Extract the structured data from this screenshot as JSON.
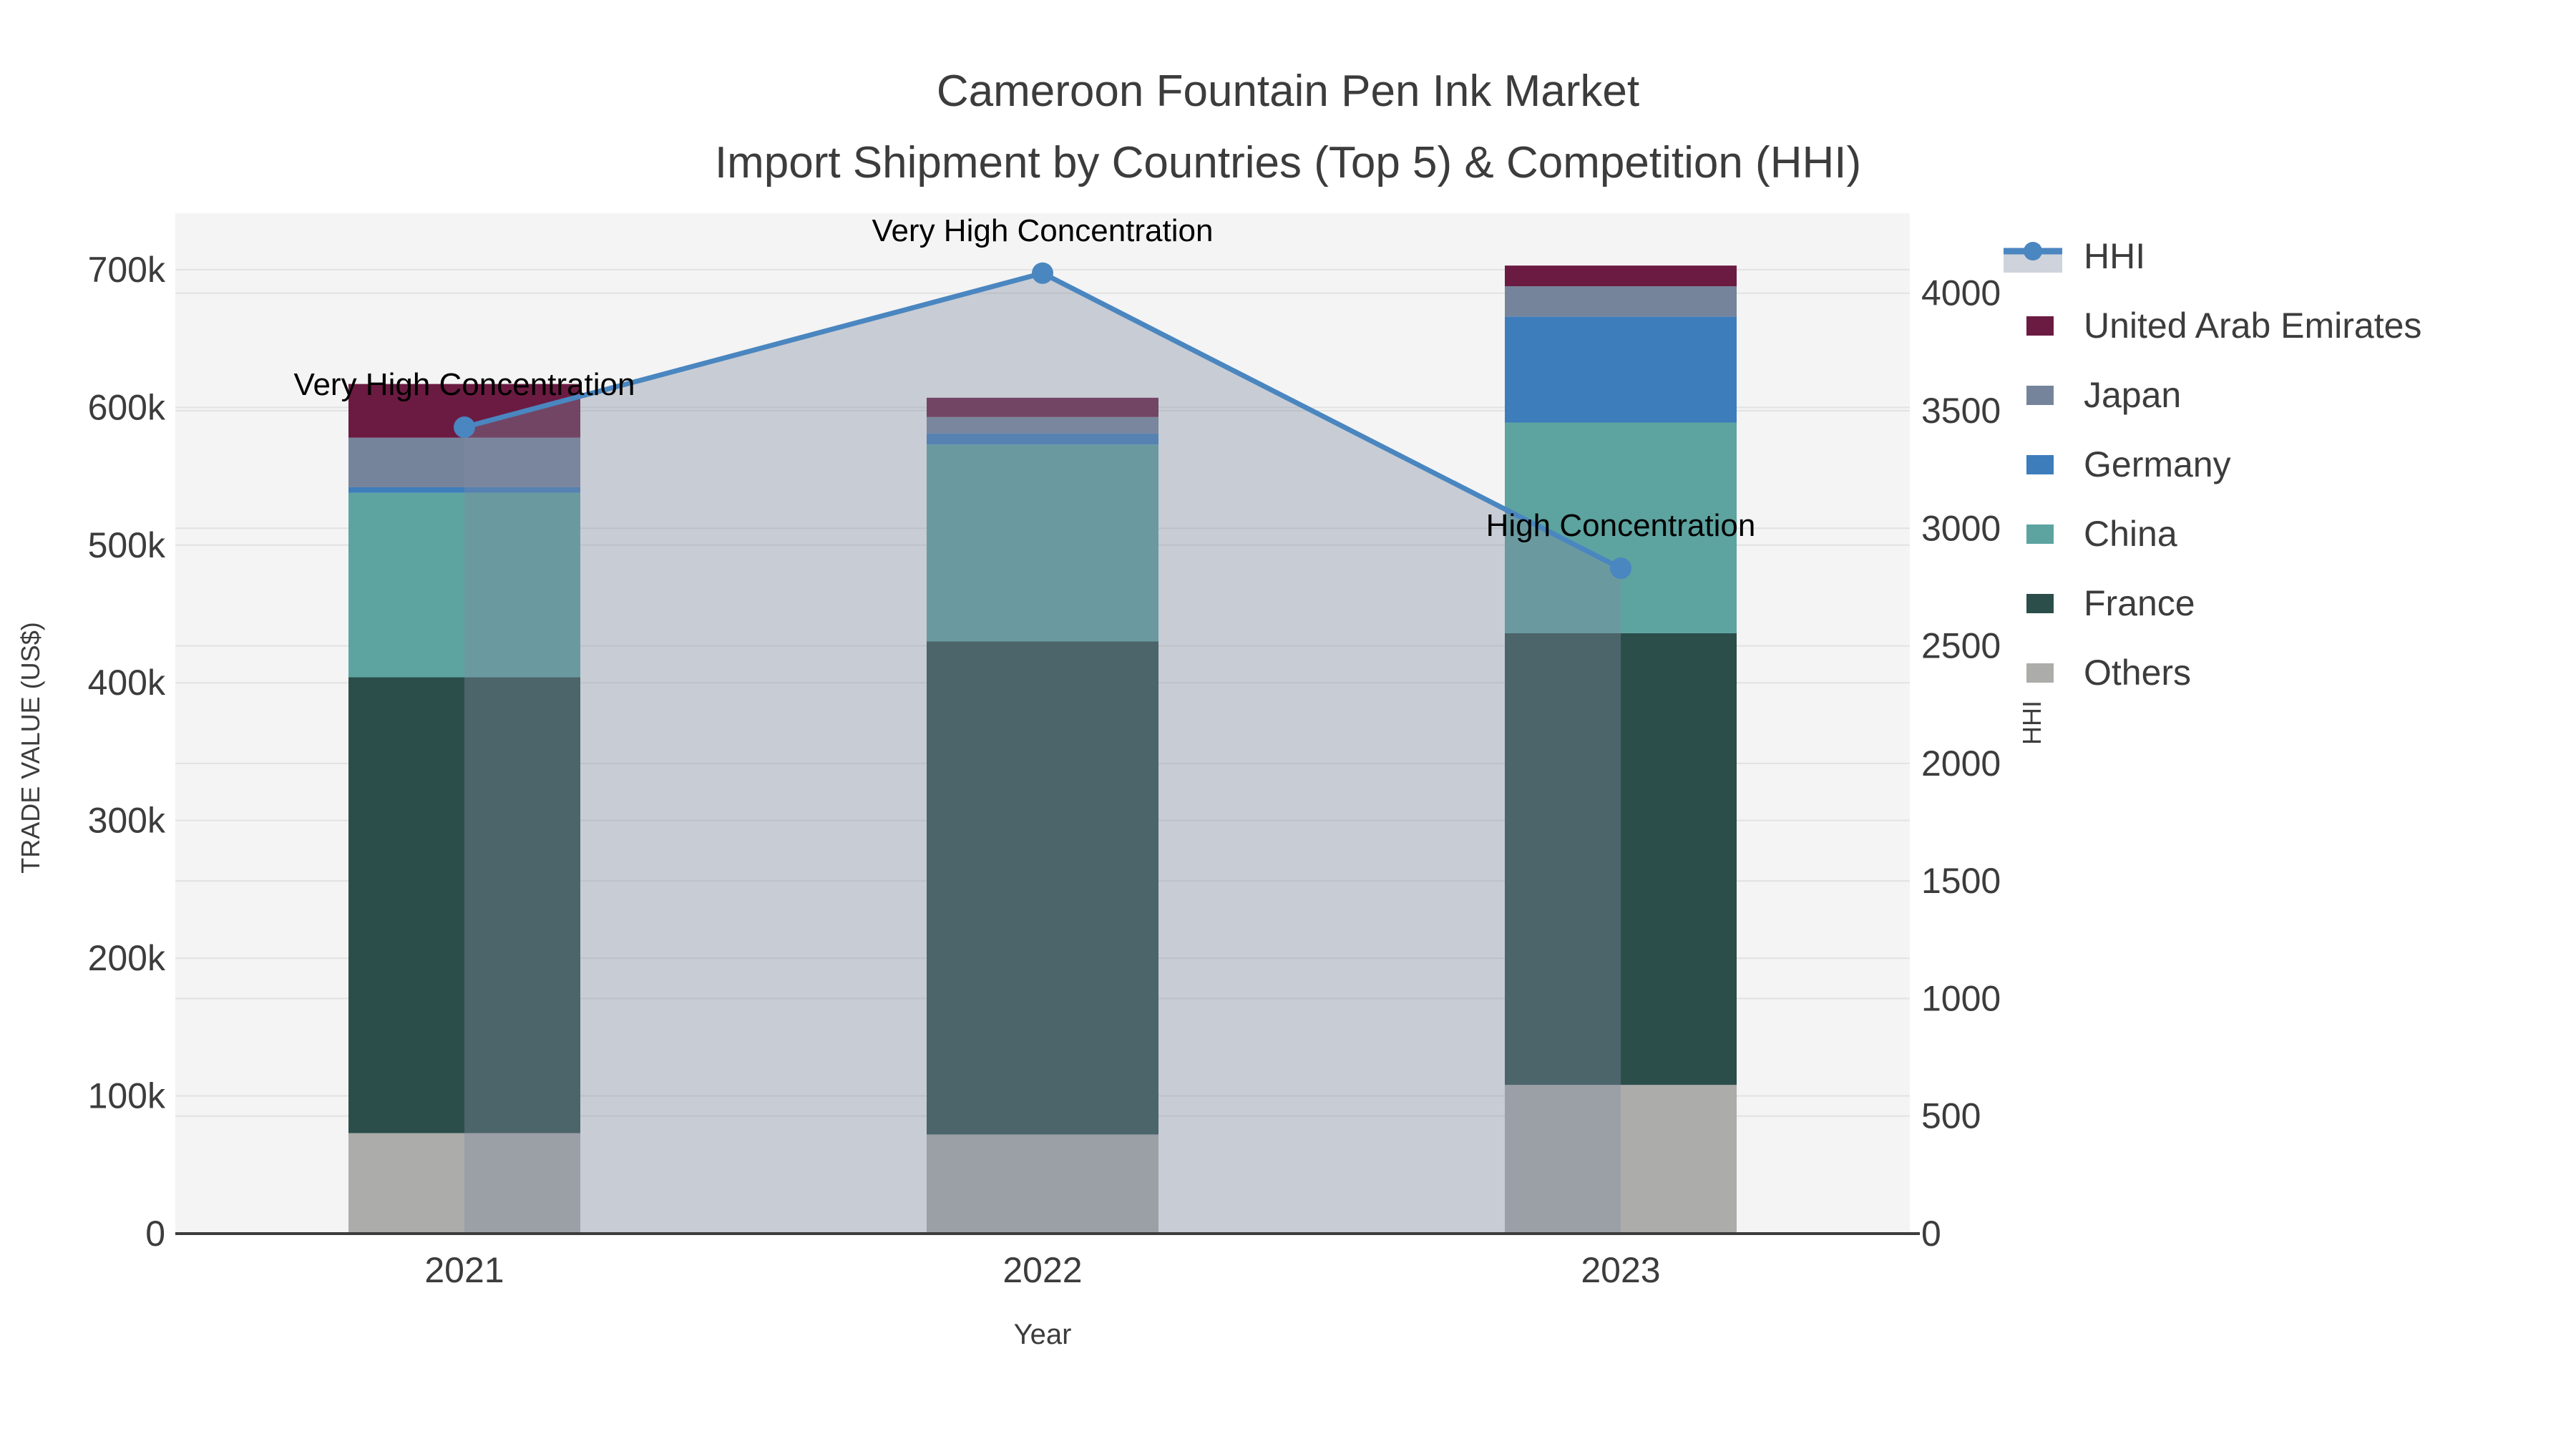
{
  "title": {
    "line1": "Cameroon Fountain Pen Ink Market",
    "line2": "Import Shipment by Countries (Top 5) & Competition (HHI)"
  },
  "chart_data": {
    "type": "bar",
    "stacked": true,
    "categories": [
      "2021",
      "2022",
      "2023"
    ],
    "series": [
      {
        "name": "Others",
        "color": "#acacaa",
        "values": [
          73000,
          72000,
          108000
        ]
      },
      {
        "name": "France",
        "color": "#2b4e4a",
        "values": [
          331000,
          358000,
          328000
        ]
      },
      {
        "name": "China",
        "color": "#5da3a0",
        "values": [
          134000,
          143000,
          153000
        ]
      },
      {
        "name": "Germany",
        "color": "#3d7dbb",
        "values": [
          4000,
          8000,
          77000
        ]
      },
      {
        "name": "Japan",
        "color": "#76849b",
        "values": [
          36000,
          12000,
          22000
        ]
      },
      {
        "name": "United Arab Emirates",
        "color": "#6b1b42",
        "values": [
          39000,
          14000,
          15000
        ]
      }
    ],
    "totals": [
      617000,
      607000,
      703000
    ],
    "line_series": {
      "name": "HHI",
      "axis": "right",
      "color": "#4a86c0",
      "area_fill": "#828ca0",
      "area_opacity": 0.38,
      "values": [
        3430,
        4085,
        2830
      ]
    },
    "annotations": [
      {
        "category": "2021",
        "text": "Very High Concentration"
      },
      {
        "category": "2022",
        "text": "Very High Concentration"
      },
      {
        "category": "2023",
        "text": "High Concentration"
      }
    ],
    "xlabel": "Year",
    "left_axis": {
      "title": "TRADE VALUE (US$)",
      "ticks": [
        "0",
        "100k",
        "200k",
        "300k",
        "400k",
        "500k",
        "600k",
        "700k"
      ],
      "tick_values": [
        0,
        100000,
        200000,
        300000,
        400000,
        500000,
        600000,
        700000
      ],
      "range": [
        0,
        741000
      ]
    },
    "right_axis": {
      "title": "HHI",
      "ticks": [
        "0",
        "500",
        "1000",
        "1500",
        "2000",
        "2500",
        "3000",
        "3500",
        "4000"
      ],
      "tick_values": [
        0,
        500,
        1000,
        1500,
        2000,
        2500,
        3000,
        3500,
        4000
      ],
      "range": [
        0,
        4340
      ]
    },
    "grid": true,
    "legend_position": "top-right",
    "legend_order": [
      "HHI",
      "United Arab Emirates",
      "Japan",
      "Germany",
      "China",
      "France",
      "Others"
    ]
  },
  "colors": {
    "figure_bg": "#ffffff",
    "plot_bg": "#f4f4f4",
    "grid": "#e2e2e4",
    "axis_line": "#3c3c3c",
    "text": "#3c3c3c",
    "annotation": "#000000"
  }
}
